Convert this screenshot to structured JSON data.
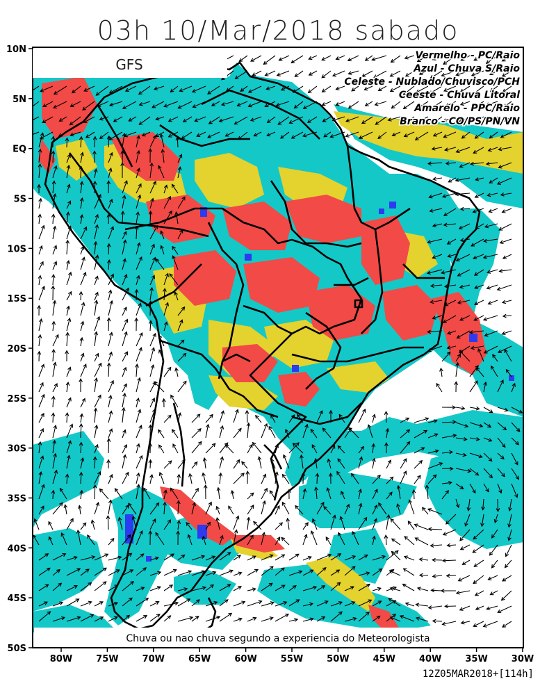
{
  "title": "03h 10/Mar/2018 sabado",
  "model_label": "GFS",
  "legend": [
    "Vermelho  - PC/Raio",
    "Azul  - Chuva S/Raio",
    "Celeste  - Nublado/Chuvisco/PCH",
    "Ceeste  - Chuva Litoral",
    "Amarelo  - PPC/Raio",
    "Branco  - CO/PS/PN/VN"
  ],
  "category_colors": {
    "red": "#f24a46",
    "blue": "#2c3bf0",
    "cyan": "#14c8c8",
    "yellow": "#e4d22e",
    "white": "#ffffff"
  },
  "note": "Chuva ou nao chuva segundo a experiencia do Meteorologista",
  "run_label": "12Z05MAR2018+[114h]",
  "lat_ticks": [
    "10N",
    "5N",
    "EQ",
    "5S",
    "10S",
    "15S",
    "20S",
    "25S",
    "30S",
    "35S",
    "40S",
    "45S",
    "50S"
  ],
  "lon_ticks": [
    "80W",
    "75W",
    "70W",
    "65W",
    "60W",
    "55W",
    "50W",
    "45W",
    "40W",
    "35W",
    "30W"
  ]
}
